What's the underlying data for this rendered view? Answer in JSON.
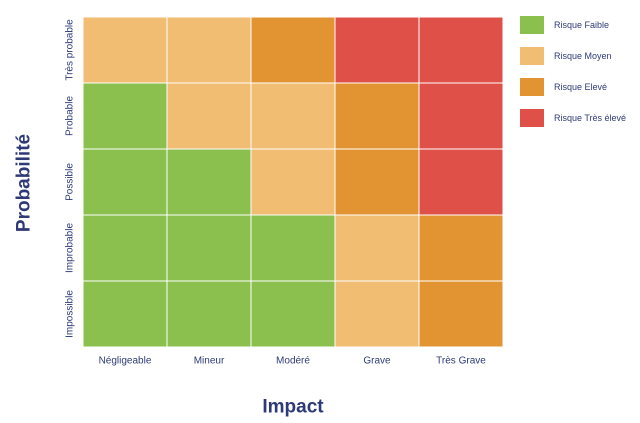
{
  "chart_data": {
    "type": "heatmap",
    "xlabel": "Impact",
    "ylabel": "Probabilité",
    "x_categories": [
      "Négligeable",
      "Mineur",
      "Modéré",
      "Grave",
      "Très Grave"
    ],
    "y_categories": [
      "Très probable",
      "Probable",
      "Possible",
      "Improbable",
      "Impossible"
    ],
    "risk_levels": [
      {
        "level": 1,
        "name": "Risque Faible",
        "color": "#8bc04f"
      },
      {
        "level": 2,
        "name": "Risque Moyen",
        "color": "#f0bd72"
      },
      {
        "level": 3,
        "name": "Risque Elevé",
        "color": "#e29432"
      },
      {
        "level": 4,
        "name": "Risque Très élevé",
        "color": "#df5049"
      }
    ],
    "matrix": [
      [
        2,
        2,
        3,
        4,
        4
      ],
      [
        1,
        2,
        2,
        3,
        4
      ],
      [
        1,
        1,
        2,
        3,
        4
      ],
      [
        1,
        1,
        1,
        2,
        3
      ],
      [
        1,
        1,
        1,
        2,
        3
      ]
    ],
    "legend_position": "top-right",
    "grid": true
  },
  "colors": {
    "axis_text": "#2e3a78",
    "cell_border": "#ffffff"
  }
}
